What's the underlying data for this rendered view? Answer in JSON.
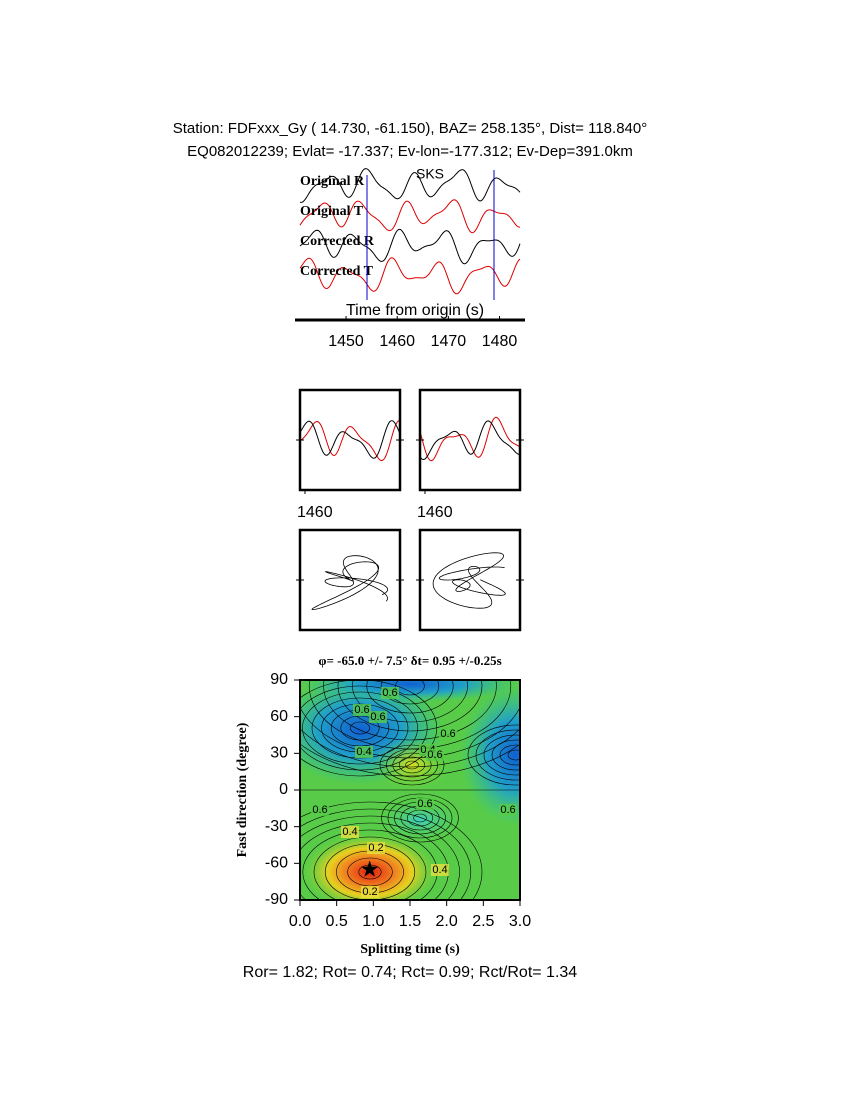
{
  "header": {
    "line1": "Station: FDFxxx_Gy (  14.730,  -61.150), BAZ=  258.135°, Dist=  118.840°",
    "line2": "EQ082012239; Evlat= -17.337; Ev-lon=-177.312; Ev-Dep=391.0km"
  },
  "chart_data": [
    {
      "type": "waveform",
      "trace_labels": [
        "Original R",
        "Original T",
        "Corrected R",
        "Corrected T"
      ],
      "phase_label": "SKS",
      "xlabel": "Time from origin (s)",
      "xlim": [
        1441,
        1484
      ],
      "xticks": [
        1450,
        1460,
        1470,
        1480
      ]
    },
    {
      "type": "waveform",
      "xlim": [
        1459,
        1479
      ],
      "xticks": [
        1460
      ]
    },
    {
      "type": "waveform",
      "xlim": [
        1459,
        1479
      ],
      "xticks": [
        1460
      ]
    },
    {
      "type": "contour",
      "title": "φ= -65.0 +/- 7.5° δt= 0.95 +/-0.25s",
      "xlabel": "Splitting time (s)",
      "ylabel": "Fast direction (degree)",
      "xlim": [
        0,
        3
      ],
      "ylim": [
        -90,
        90
      ],
      "xticks": [
        {
          "value": 0,
          "label": "0.0"
        },
        0.5,
        {
          "value": 1,
          "label": "1.0"
        },
        1.5,
        {
          "value": 2,
          "label": "2.0"
        },
        2.5,
        {
          "value": 3,
          "label": "3.0"
        }
      ],
      "yticks": [
        -90,
        -60,
        -30,
        0,
        30,
        60,
        90
      ],
      "best": {
        "x": 0.95,
        "y": -65
      },
      "contour_labels": [
        0.6,
        0.6,
        0.6,
        0.4,
        0.4,
        0.6,
        0.6,
        0.6,
        0.6,
        0.6,
        0.4,
        0.2,
        0.4,
        0.2
      ]
    }
  ],
  "footer": "Ror= 1.82; Rot= 0.74; Rct= 0.99; Rct/Rot= 1.34"
}
